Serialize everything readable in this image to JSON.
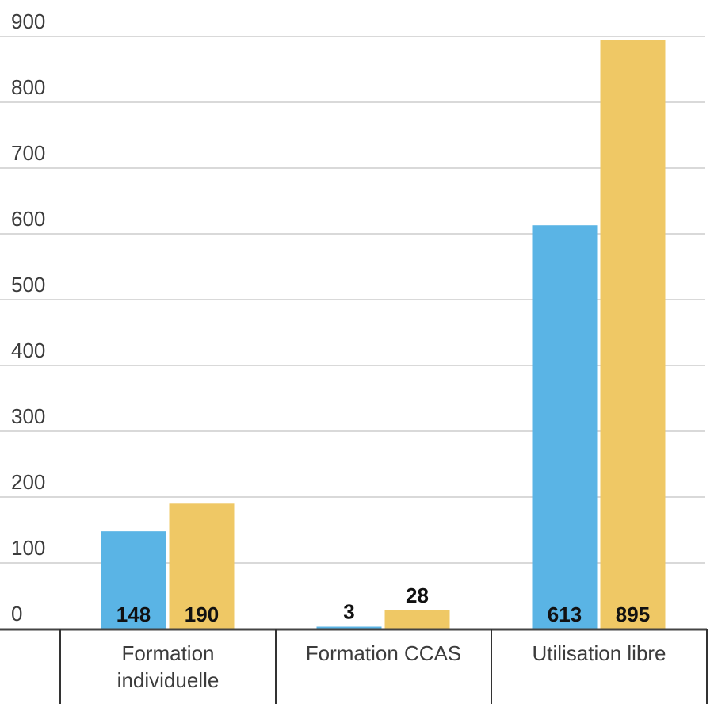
{
  "chart_data": {
    "type": "bar",
    "categories": [
      "Formation individuelle",
      "Formation CCAS",
      "Utilisation libre"
    ],
    "series": [
      {
        "values": [
          148,
          3,
          613
        ],
        "color": "#5ab4e5"
      },
      {
        "values": [
          190,
          28,
          895
        ],
        "color": "#efc865"
      }
    ],
    "y_ticks": [
      "0",
      "100",
      "200",
      "300",
      "400",
      "500",
      "600",
      "700",
      "800",
      "900"
    ],
    "ylim": [
      0,
      900
    ],
    "grid": true,
    "legend": "none",
    "title": "",
    "xlabel": "",
    "ylabel": ""
  }
}
